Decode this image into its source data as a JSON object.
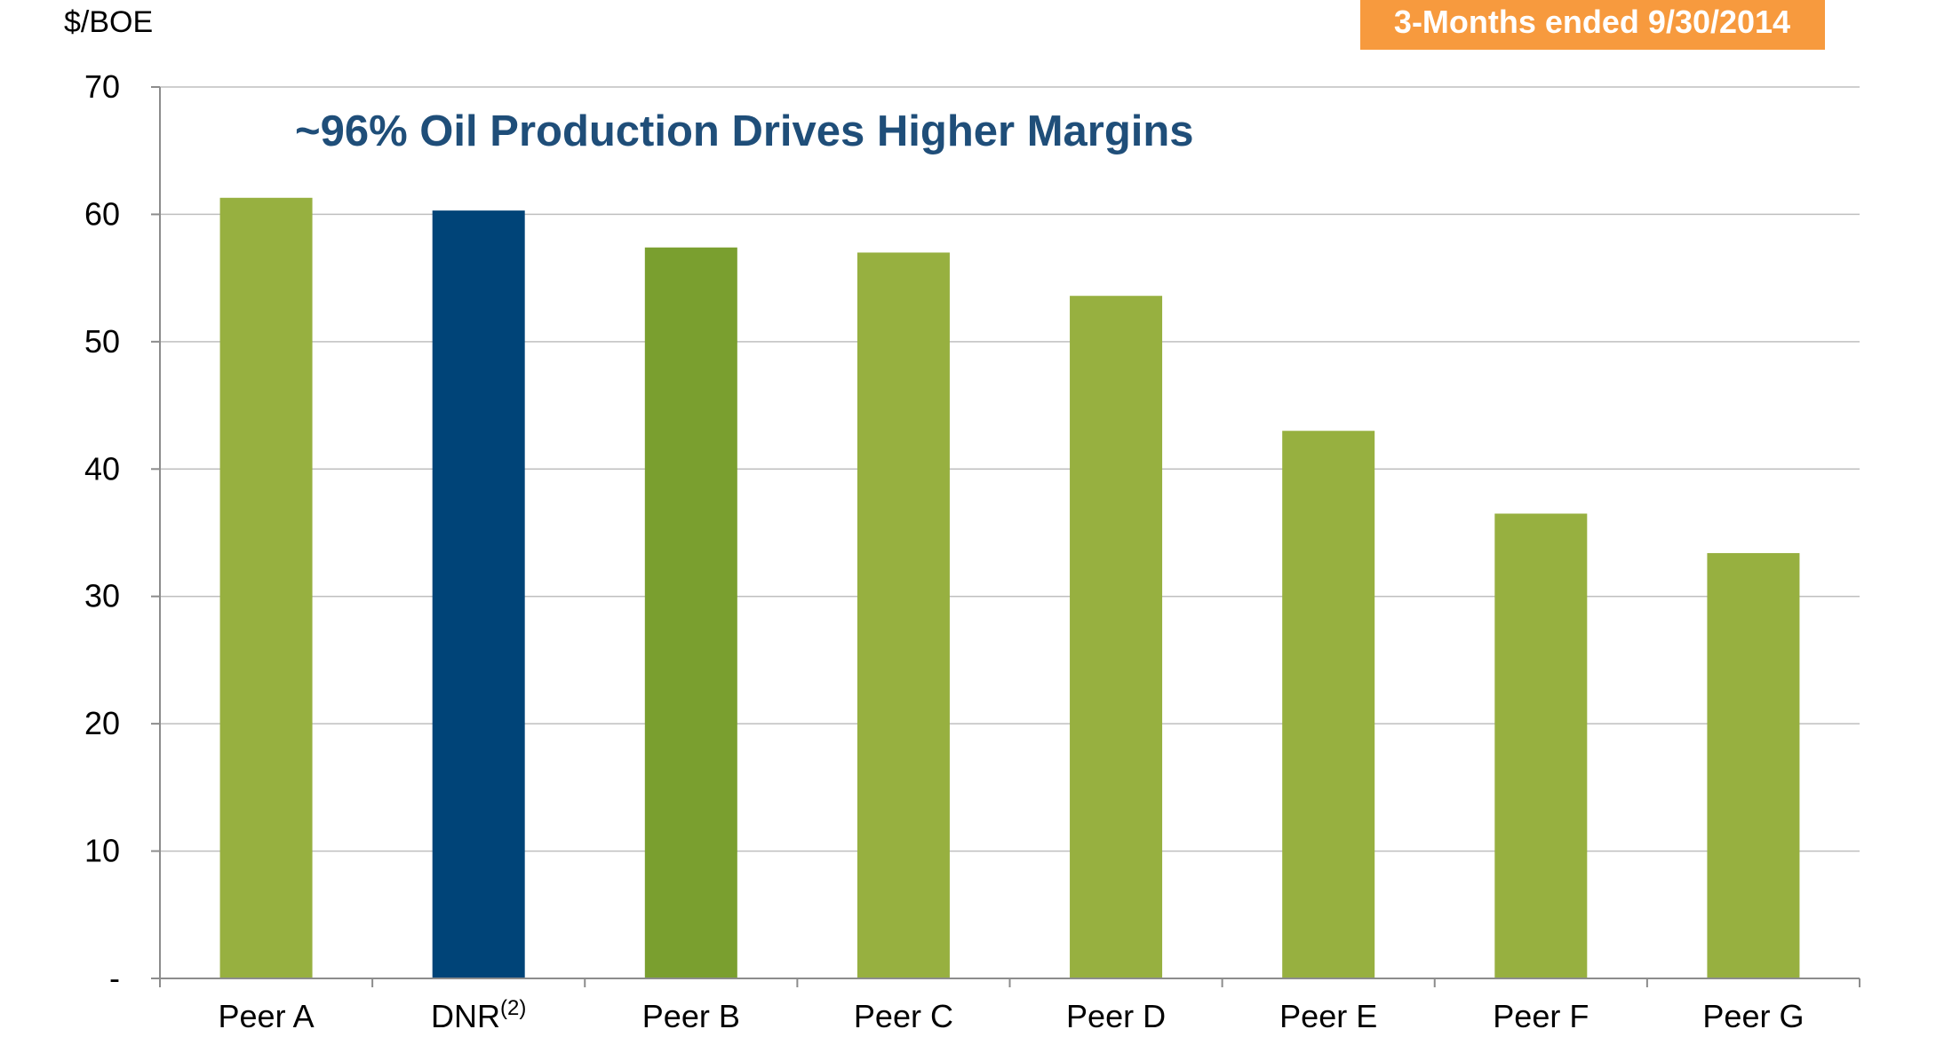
{
  "chart_data": {
    "type": "bar",
    "title": "~96% Oil Production Drives Higher Margins",
    "badge": "3-Months ended 9/30/2014",
    "ylabel": "$/BOE",
    "xlabel": "",
    "ylim": [
      0,
      70
    ],
    "yticks": [
      {
        "value": 0,
        "label": "-"
      },
      {
        "value": 10,
        "label": "10"
      },
      {
        "value": 20,
        "label": "20"
      },
      {
        "value": 30,
        "label": "30"
      },
      {
        "value": 40,
        "label": "40"
      },
      {
        "value": 50,
        "label": "50"
      },
      {
        "value": 60,
        "label": "60"
      },
      {
        "value": 70,
        "label": "70"
      }
    ],
    "grid": true,
    "categories": [
      {
        "label": "Peer A",
        "sup": ""
      },
      {
        "label": "DNR",
        "sup": "(2)"
      },
      {
        "label": "Peer B",
        "sup": ""
      },
      {
        "label": "Peer C",
        "sup": ""
      },
      {
        "label": "Peer D",
        "sup": ""
      },
      {
        "label": "Peer E",
        "sup": ""
      },
      {
        "label": "Peer F",
        "sup": ""
      },
      {
        "label": "Peer G",
        "sup": ""
      }
    ],
    "values": [
      61.3,
      60.3,
      57.4,
      57.0,
      53.6,
      43.0,
      36.5,
      33.4
    ],
    "bar_colors": [
      "#97B040",
      "#004478",
      "#7A9F2F",
      "#97B040",
      "#97B040",
      "#97B040",
      "#97B040",
      "#97B040"
    ]
  },
  "colors": {
    "title": "#1F4E79",
    "badge_bg": "#F79A3E",
    "badge_text": "#ffffff",
    "axis": "#8C8C8C",
    "grid": "#BFBFBF",
    "text": "#000000"
  }
}
